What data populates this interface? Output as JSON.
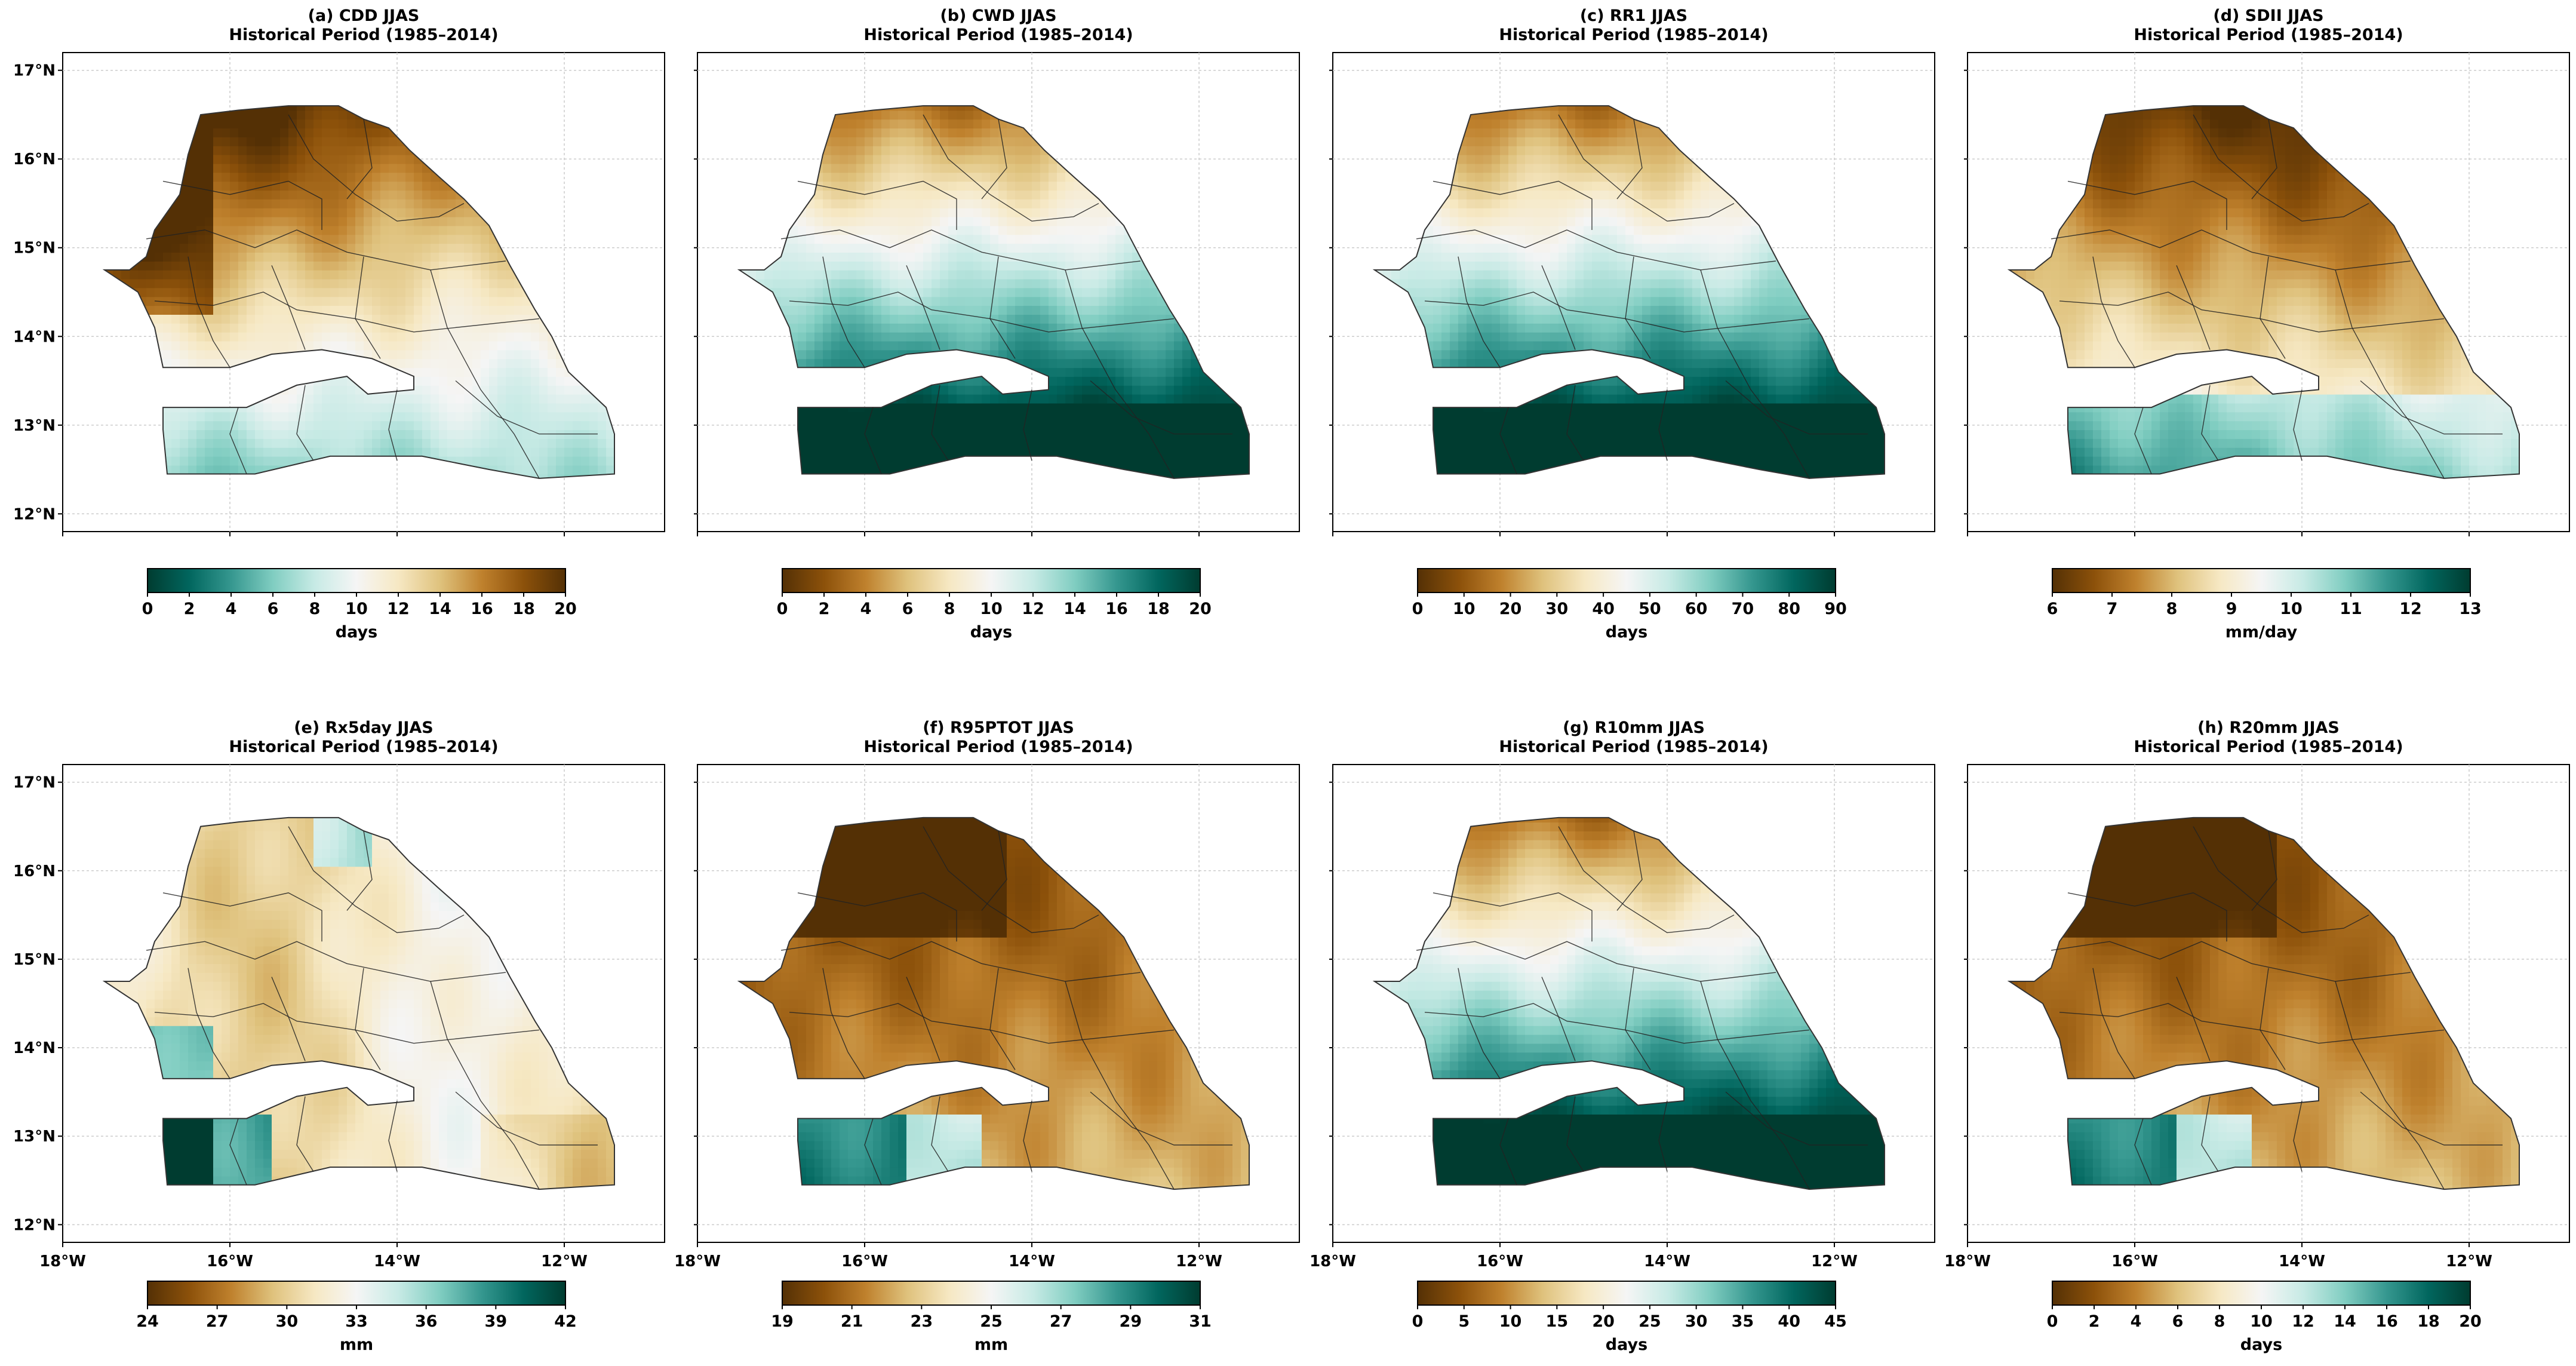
{
  "colors": {
    "brown_dark": "#543005",
    "brown": "#8c510a",
    "brown_mid": "#bf812d",
    "tan": "#dfc27d",
    "beige": "#f6e8c3",
    "white_mid": "#f5f5f5",
    "teal_light": "#c7eae5",
    "teal_mid": "#80cdc1",
    "teal": "#35978f",
    "teal_dark": "#01665e",
    "teal_darkest": "#003c30"
  },
  "axes": {
    "lat_ticks": [
      "17°N",
      "16°N",
      "15°N",
      "14°N",
      "13°N",
      "12°N"
    ],
    "lat_values": [
      17,
      16,
      15,
      14,
      13,
      12
    ],
    "lon_ticks": [
      "18°W",
      "16°W",
      "14°W",
      "12°W"
    ],
    "lon_values": [
      -18,
      -16,
      -14,
      -12
    ],
    "xlim": [
      -18,
      -10.8
    ],
    "ylim": [
      11.8,
      17.2
    ]
  },
  "chart_data": [
    {
      "type": "heatmap",
      "panel": "(a)",
      "index": "CDD",
      "title": "(a) CDD JJAS",
      "subtitle": "Historical Period (1985–2014)",
      "cbar_label": "days",
      "cbar_ticks": [
        "0",
        "2",
        "4",
        "6",
        "8",
        "10",
        "12",
        "14",
        "16",
        "18",
        "20"
      ],
      "vmin": 0,
      "vmax": 20,
      "cmap": "BrBG_r",
      "pattern": "north_high"
    },
    {
      "type": "heatmap",
      "panel": "(b)",
      "index": "CWD",
      "title": "(b) CWD JJAS",
      "subtitle": "Historical Period (1985–2014)",
      "cbar_label": "days",
      "cbar_ticks": [
        "0",
        "2",
        "4",
        "6",
        "8",
        "10",
        "12",
        "14",
        "16",
        "18",
        "20"
      ],
      "vmin": 0,
      "vmax": 20,
      "cmap": "BrBG",
      "pattern": "south_high"
    },
    {
      "type": "heatmap",
      "panel": "(c)",
      "index": "RR1",
      "title": "(c) RR1 JJAS",
      "subtitle": "Historical Period (1985–2014)",
      "cbar_label": "days",
      "cbar_ticks": [
        "0",
        "10",
        "20",
        "30",
        "40",
        "50",
        "60",
        "70",
        "80",
        "90"
      ],
      "vmin": 0,
      "vmax": 90,
      "cmap": "BrBG",
      "pattern": "south_high"
    },
    {
      "type": "heatmap",
      "panel": "(d)",
      "index": "SDII",
      "title": "(d) SDII JJAS",
      "subtitle": "Historical Period (1985–2014)",
      "cbar_label": "mm/day",
      "cbar_ticks": [
        "6",
        "7",
        "8",
        "9",
        "10",
        "11",
        "12",
        "13"
      ],
      "vmin": 6,
      "vmax": 13,
      "cmap": "BrBG",
      "pattern": "south_moderate"
    },
    {
      "type": "heatmap",
      "panel": "(e)",
      "index": "Rx5day",
      "title": "(e) Rx5day JJAS",
      "subtitle": "Historical Period (1985–2014)",
      "cbar_label": "mm",
      "cbar_ticks": [
        "24",
        "27",
        "30",
        "33",
        "36",
        "39",
        "42"
      ],
      "vmin": 24,
      "vmax": 42,
      "cmap": "BrBG",
      "pattern": "mixed"
    },
    {
      "type": "heatmap",
      "panel": "(f)",
      "index": "R95PTOT",
      "title": "(f) R95PTOT JJAS",
      "subtitle": "Historical Period (1985–2014)",
      "cbar_label": "mm",
      "cbar_ticks": [
        "19",
        "21",
        "23",
        "25",
        "27",
        "29",
        "31"
      ],
      "vmin": 19,
      "vmax": 31,
      "cmap": "BrBG",
      "pattern": "southwest_high"
    },
    {
      "type": "heatmap",
      "panel": "(g)",
      "index": "R10mm",
      "title": "(g) R10mm JJAS",
      "subtitle": "Historical Period (1985–2014)",
      "cbar_label": "days",
      "cbar_ticks": [
        "0",
        "5",
        "10",
        "15",
        "20",
        "25",
        "30",
        "35",
        "40",
        "45"
      ],
      "vmin": 0,
      "vmax": 45,
      "cmap": "BrBG",
      "pattern": "south_high"
    },
    {
      "type": "heatmap",
      "panel": "(h)",
      "index": "R20mm",
      "title": "(h) R20mm JJAS",
      "subtitle": "Historical Period (1985–2014)",
      "cbar_label": "days",
      "cbar_ticks": [
        "0",
        "2",
        "4",
        "6",
        "8",
        "10",
        "12",
        "14",
        "16",
        "18",
        "20"
      ],
      "vmin": 0,
      "vmax": 20,
      "cmap": "BrBG",
      "pattern": "southwest_high"
    }
  ]
}
